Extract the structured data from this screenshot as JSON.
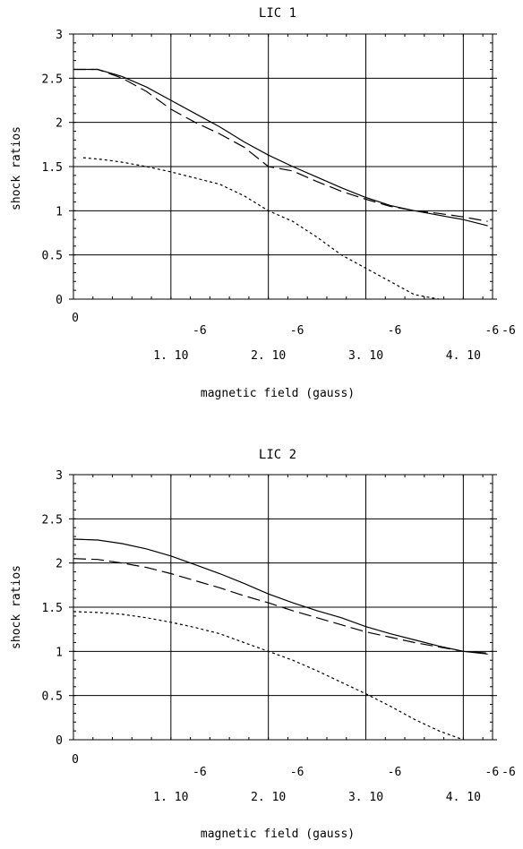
{
  "chart_data": [
    {
      "type": "line",
      "title": "LIC 1",
      "xlabel": "magnetic field (gauss)",
      "ylabel": "shock ratios",
      "xlim": [
        0,
        4.3e-06
      ],
      "ylim": [
        0,
        3
      ],
      "grid": true,
      "x_ticks": [
        {
          "mant": "0",
          "exp": ""
        },
        {
          "mant": "1. 10",
          "exp": "-6"
        },
        {
          "mant": "2. 10",
          "exp": "-6"
        },
        {
          "mant": "3. 10",
          "exp": "-6"
        },
        {
          "mant": "4. 10",
          "exp": "-6"
        }
      ],
      "x_tick_values": [
        0,
        1e-06,
        2e-06,
        3e-06,
        4e-06
      ],
      "y_ticks": [
        "0",
        "0.5",
        "1",
        "1.5",
        "2",
        "2.5",
        "3"
      ],
      "y_tick_values": [
        0,
        0.5,
        1,
        1.5,
        2,
        2.5,
        3
      ],
      "series": [
        {
          "style": "solid",
          "x": [
            0.0,
            2.5e-07,
            5e-07,
            7.5e-07,
            1e-06,
            1.25e-06,
            1.5e-06,
            1.75e-06,
            2e-06,
            2.25e-06,
            2.5e-06,
            2.75e-06,
            3e-06,
            3.25e-06,
            3.5e-06,
            3.75e-06,
            4e-06,
            4.25e-06
          ],
          "y": [
            2.6,
            2.6,
            2.52,
            2.4,
            2.25,
            2.1,
            1.95,
            1.78,
            1.63,
            1.5,
            1.38,
            1.26,
            1.15,
            1.06,
            1.0,
            0.95,
            0.9,
            0.83
          ]
        },
        {
          "style": "dashed",
          "x": [
            0.0,
            2.5e-07,
            5e-07,
            7.5e-07,
            1e-06,
            1.25e-06,
            1.5e-06,
            1.75e-06,
            2e-06,
            2.25e-06,
            2.5e-06,
            2.75e-06,
            3e-06,
            3.25e-06,
            3.5e-06,
            3.75e-06,
            4e-06,
            4.25e-06
          ],
          "y": [
            2.6,
            2.6,
            2.5,
            2.35,
            2.15,
            2.0,
            1.87,
            1.72,
            1.5,
            1.45,
            1.33,
            1.22,
            1.13,
            1.05,
            1.0,
            0.97,
            0.93,
            0.88
          ]
        },
        {
          "style": "dotted",
          "x": [
            1e-07,
            3e-07,
            5e-07,
            7.5e-07,
            1e-06,
            1.25e-06,
            1.5e-06,
            1.75e-06,
            2e-06,
            2.25e-06,
            2.5e-06,
            2.75e-06,
            3e-06,
            3.25e-06,
            3.5e-06,
            3.75e-06
          ],
          "y": [
            1.6,
            1.58,
            1.55,
            1.5,
            1.44,
            1.37,
            1.3,
            1.17,
            1.0,
            0.88,
            0.7,
            0.5,
            0.35,
            0.2,
            0.05,
            0.0
          ]
        }
      ]
    },
    {
      "type": "line",
      "title": "LIC 2",
      "xlabel": "magnetic field (gauss)",
      "ylabel": "shock ratios",
      "xlim": [
        0,
        4.3e-06
      ],
      "ylim": [
        0,
        3
      ],
      "grid": true,
      "x_ticks": [
        {
          "mant": "0",
          "exp": ""
        },
        {
          "mant": "1. 10",
          "exp": "-6"
        },
        {
          "mant": "2. 10",
          "exp": "-6"
        },
        {
          "mant": "3. 10",
          "exp": "-6"
        },
        {
          "mant": "4. 10",
          "exp": "-6"
        }
      ],
      "x_tick_values": [
        0,
        1e-06,
        2e-06,
        3e-06,
        4e-06
      ],
      "y_ticks": [
        "0",
        "0.5",
        "1",
        "1.5",
        "2",
        "2.5",
        "3"
      ],
      "y_tick_values": [
        0,
        0.5,
        1,
        1.5,
        2,
        2.5,
        3
      ],
      "series": [
        {
          "style": "solid",
          "x": [
            0.0,
            2.5e-07,
            5e-07,
            7.5e-07,
            1e-06,
            1.25e-06,
            1.5e-06,
            1.75e-06,
            2e-06,
            2.25e-06,
            2.5e-06,
            2.75e-06,
            3e-06,
            3.25e-06,
            3.5e-06,
            3.75e-06,
            4e-06,
            4.25e-06
          ],
          "y": [
            2.27,
            2.26,
            2.22,
            2.16,
            2.08,
            1.98,
            1.88,
            1.77,
            1.65,
            1.55,
            1.46,
            1.38,
            1.28,
            1.2,
            1.13,
            1.06,
            1.0,
            0.97
          ]
        },
        {
          "style": "dashed",
          "x": [
            0.0,
            2.5e-07,
            5e-07,
            7.5e-07,
            1e-06,
            1.25e-06,
            1.5e-06,
            1.75e-06,
            2e-06,
            2.25e-06,
            2.5e-06,
            2.75e-06,
            3e-06,
            3.25e-06,
            3.5e-06,
            3.75e-06,
            4e-06,
            4.25e-06
          ],
          "y": [
            2.05,
            2.04,
            2.0,
            1.95,
            1.88,
            1.8,
            1.72,
            1.63,
            1.55,
            1.46,
            1.38,
            1.3,
            1.22,
            1.16,
            1.1,
            1.05,
            1.0,
            0.98
          ]
        },
        {
          "style": "dotted",
          "x": [
            0.0,
            2.5e-07,
            5e-07,
            7.5e-07,
            1e-06,
            1.25e-06,
            1.5e-06,
            1.75e-06,
            2e-06,
            2.25e-06,
            2.5e-06,
            2.75e-06,
            3e-06,
            3.25e-06,
            3.5e-06,
            3.75e-06,
            4e-06
          ],
          "y": [
            1.45,
            1.44,
            1.42,
            1.38,
            1.33,
            1.27,
            1.2,
            1.1,
            1.0,
            0.9,
            0.78,
            0.65,
            0.52,
            0.38,
            0.23,
            0.1,
            0.0
          ]
        }
      ]
    }
  ]
}
